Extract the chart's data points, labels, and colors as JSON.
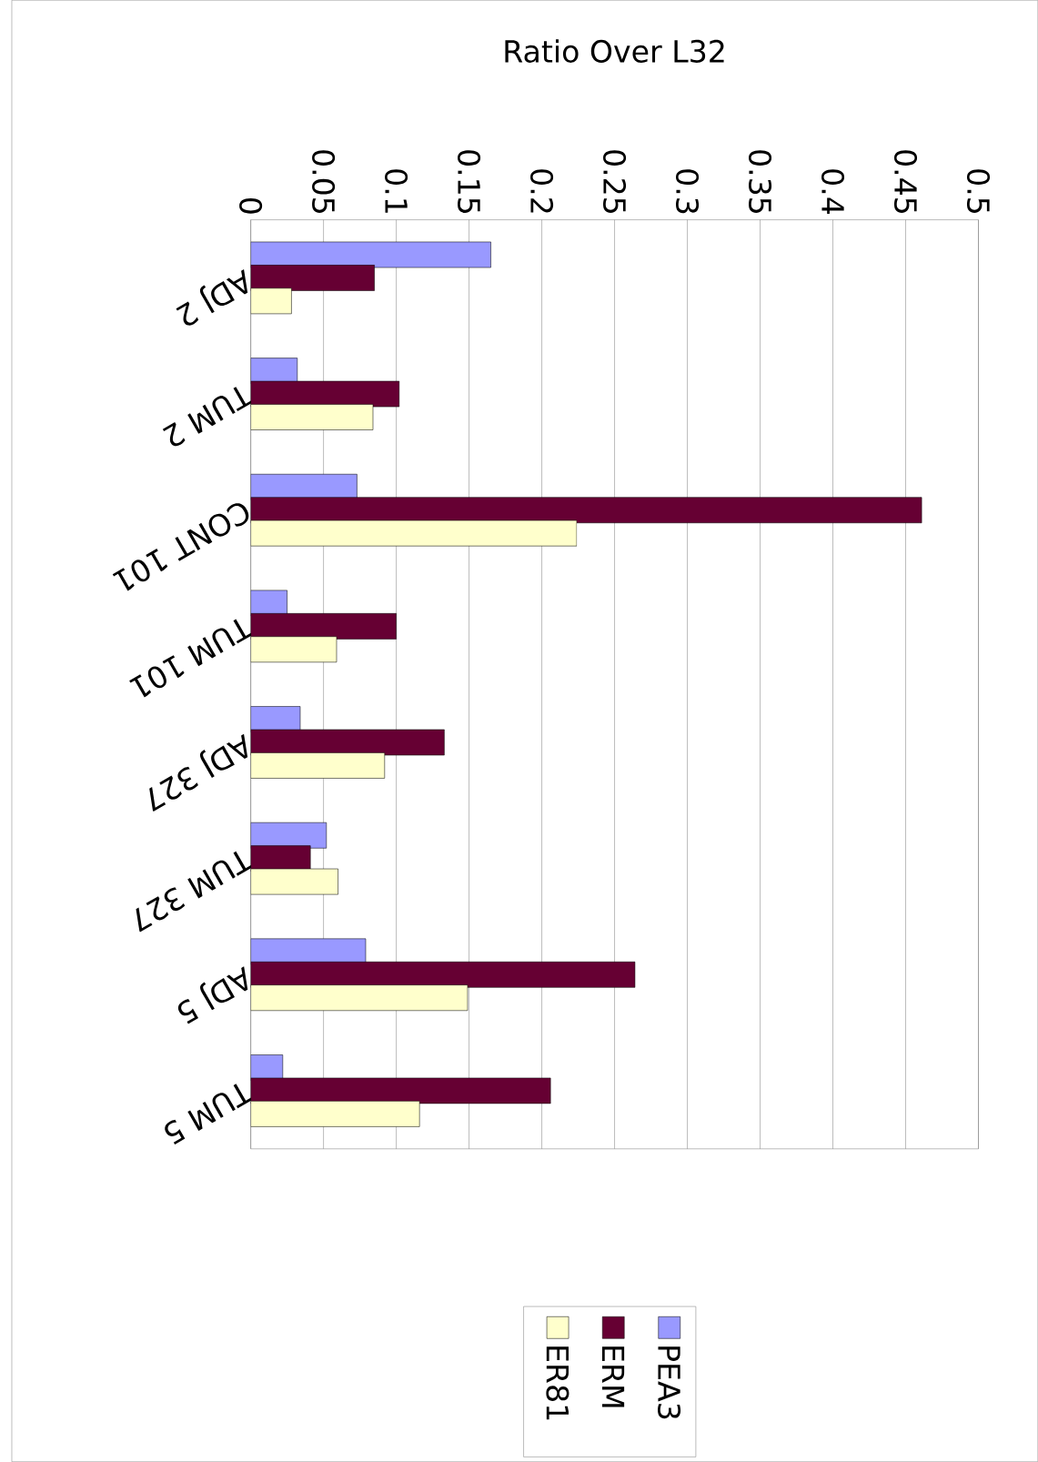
{
  "chart_data": {
    "type": "bar",
    "orientation": "horizontal",
    "title": "Ratio Over L32",
    "categories": [
      "ADJ 2",
      "TUM 2",
      "CONT 101",
      "TUM 101",
      "ADJ 327",
      "TUM 327",
      "ADJ 5",
      "TUM 5"
    ],
    "series": [
      {
        "name": "PEA3",
        "color": "#9999ff",
        "values": [
          0.165,
          0.032,
          0.073,
          0.025,
          0.034,
          0.052,
          0.079,
          0.022
        ]
      },
      {
        "name": "ERM",
        "color": "#660033",
        "values": [
          0.085,
          0.102,
          0.461,
          0.1,
          0.133,
          0.041,
          0.264,
          0.206
        ]
      },
      {
        "name": "ER81",
        "color": "#ffffcc",
        "values": [
          0.028,
          0.084,
          0.224,
          0.059,
          0.092,
          0.06,
          0.149,
          0.116
        ]
      }
    ],
    "xlim": [
      0,
      0.5
    ],
    "xticks": [
      0,
      0.05,
      0.1,
      0.15,
      0.2,
      0.25,
      0.3,
      0.35,
      0.4,
      0.45,
      0.5
    ],
    "grid": "x",
    "legend": "bottom"
  }
}
